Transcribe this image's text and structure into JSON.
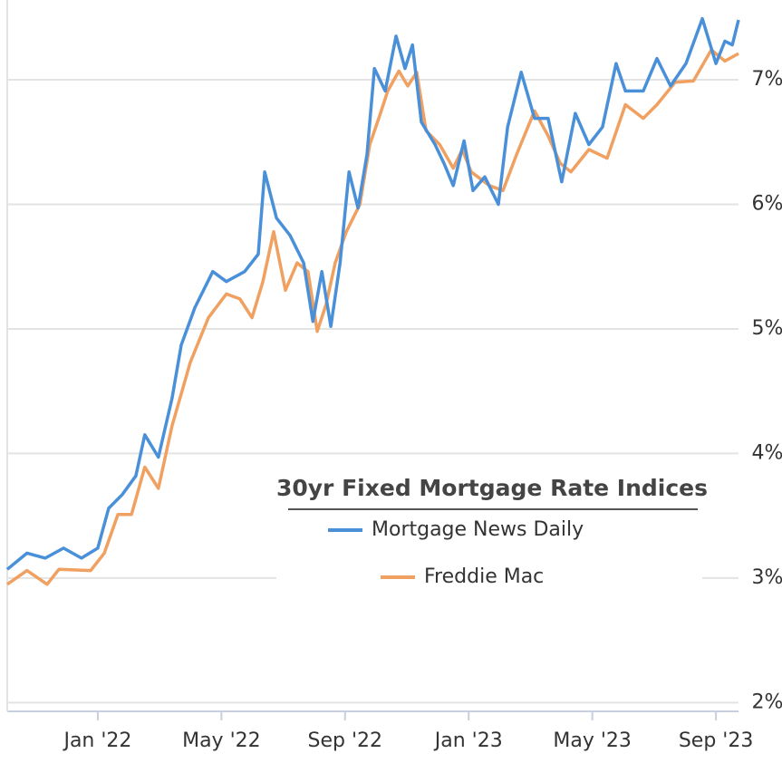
{
  "chart_data": {
    "type": "line",
    "legend_title": "30yr Fixed Mortgage Rate Indices",
    "legend": "inside-lower-right",
    "grid": true,
    "xlim": [
      -2.93,
      20.73
    ],
    "xticks": [
      {
        "value": 0,
        "label": "Jan '22"
      },
      {
        "value": 4,
        "label": "May '22"
      },
      {
        "value": 8,
        "label": "Sep '22"
      },
      {
        "value": 12,
        "label": "Jan '23"
      },
      {
        "value": 16,
        "label": "May '23"
      },
      {
        "value": 20,
        "label": "Sep '23"
      }
    ],
    "ylim": [
      1.93,
      7.64
    ],
    "yticks": [
      {
        "value": 2,
        "label": "2%"
      },
      {
        "value": 3,
        "label": "3%"
      },
      {
        "value": 4,
        "label": "4%"
      },
      {
        "value": 5,
        "label": "5%"
      },
      {
        "value": 6,
        "label": "6%"
      },
      {
        "value": 7,
        "label": "7%"
      }
    ],
    "series": [
      {
        "name": "Mortgage News Daily",
        "color": "#4a90d9",
        "x": [
          -2.93,
          -2.29,
          -1.7,
          -1.11,
          -0.53,
          0,
          0.35,
          0.79,
          1.23,
          1.52,
          1.96,
          2.4,
          2.7,
          3.14,
          3.72,
          4.16,
          4.75,
          5.19,
          5.4,
          5.78,
          6.22,
          6.66,
          6.96,
          7.25,
          7.54,
          7.84,
          8.13,
          8.42,
          8.71,
          8.95,
          9.3,
          9.65,
          9.94,
          10.18,
          10.47,
          10.91,
          11.2,
          11.5,
          11.85,
          12.14,
          12.52,
          12.96,
          13.26,
          13.7,
          14.13,
          14.57,
          15.01,
          15.45,
          15.89,
          16.33,
          16.77,
          17.07,
          17.65,
          18.09,
          18.53,
          19.03,
          19.56,
          20.0,
          20.29,
          20.53,
          20.73
        ],
        "values": [
          3.07,
          3.2,
          3.16,
          3.24,
          3.16,
          3.24,
          3.56,
          3.67,
          3.82,
          4.15,
          3.97,
          4.44,
          4.87,
          5.17,
          5.46,
          5.38,
          5.46,
          5.6,
          6.26,
          5.89,
          5.75,
          5.53,
          5.06,
          5.46,
          5.02,
          5.53,
          6.26,
          5.97,
          6.4,
          7.09,
          6.91,
          7.35,
          7.09,
          7.28,
          6.66,
          6.48,
          6.33,
          6.15,
          6.51,
          6.11,
          6.22,
          6.0,
          6.62,
          7.06,
          6.69,
          6.69,
          6.18,
          6.73,
          6.48,
          6.62,
          7.13,
          6.91,
          6.91,
          7.17,
          6.95,
          7.13,
          7.49,
          7.13,
          7.31,
          7.28,
          7.48
        ]
      },
      {
        "name": "Freddie Mac",
        "color": "#f0a060",
        "x": [
          -2.93,
          -2.29,
          -1.64,
          -1.26,
          -0.23,
          0.21,
          0.65,
          1.09,
          1.52,
          1.96,
          2.4,
          2.99,
          3.58,
          4.16,
          4.6,
          4.99,
          5.34,
          5.69,
          6.07,
          6.45,
          6.8,
          7.1,
          7.39,
          7.68,
          8.04,
          8.48,
          8.8,
          9.09,
          9.38,
          9.74,
          10.03,
          10.32,
          10.62,
          11.06,
          11.5,
          11.79,
          12.08,
          12.67,
          13.11,
          13.55,
          14.13,
          14.57,
          14.96,
          15.31,
          15.89,
          16.48,
          17.07,
          17.65,
          18.09,
          18.68,
          19.27,
          19.85,
          20.29,
          20.73
        ],
        "values": [
          2.95,
          3.06,
          2.95,
          3.07,
          3.06,
          3.2,
          3.51,
          3.51,
          3.89,
          3.72,
          4.22,
          4.73,
          5.09,
          5.28,
          5.24,
          5.09,
          5.38,
          5.78,
          5.31,
          5.53,
          5.46,
          4.98,
          5.2,
          5.53,
          5.78,
          6.0,
          6.48,
          6.69,
          6.91,
          7.07,
          6.95,
          7.06,
          6.59,
          6.48,
          6.29,
          6.44,
          6.26,
          6.15,
          6.11,
          6.4,
          6.75,
          6.55,
          6.33,
          6.26,
          6.44,
          6.37,
          6.8,
          6.69,
          6.8,
          6.98,
          6.99,
          7.24,
          7.15,
          7.21
        ]
      }
    ]
  }
}
